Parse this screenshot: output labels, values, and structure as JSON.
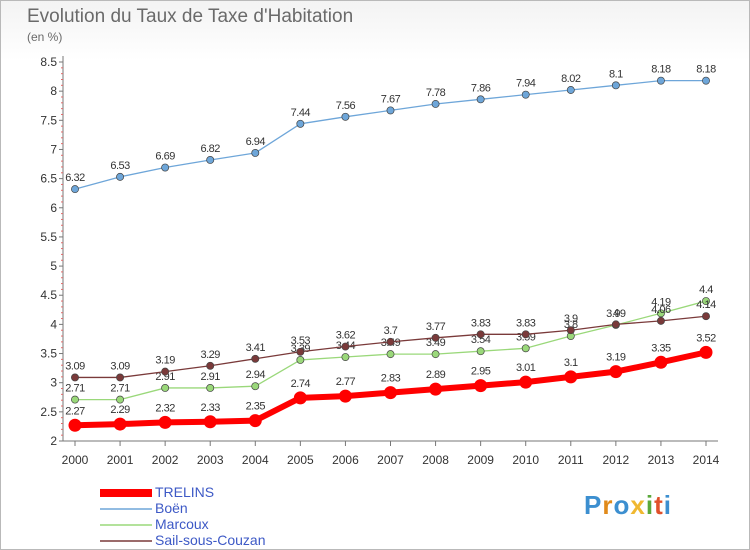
{
  "title": "Evolution du Taux de Taxe d'Habitation",
  "subtitle": "(en %)",
  "logo": "Proxiti",
  "chart_data": {
    "type": "line",
    "title": "Evolution du Taux de Taxe d'Habitation",
    "ylabel": "(en %)",
    "xlabel": "",
    "x": [
      "2000",
      "2001",
      "2002",
      "2003",
      "2004",
      "2005",
      "2006",
      "2007",
      "2008",
      "2009",
      "2010",
      "2011",
      "2012",
      "2013",
      "2014"
    ],
    "yticks": [
      "2",
      "2.5",
      "3",
      "3.5",
      "4",
      "4.5",
      "5",
      "5.5",
      "6",
      "6.5",
      "7",
      "7.5",
      "8",
      "8.5"
    ],
    "ylim": [
      2,
      8.5
    ],
    "grid": false,
    "legend_position": "bottom-left",
    "series": [
      {
        "name": "TRELINS",
        "color": "#ff0000",
        "values": [
          2.27,
          2.29,
          2.32,
          2.33,
          2.35,
          2.74,
          2.77,
          2.83,
          2.89,
          2.95,
          3.01,
          3.1,
          3.19,
          3.35,
          3.52
        ]
      },
      {
        "name": "Boën",
        "color": "#6ea6d9",
        "values": [
          6.32,
          6.53,
          6.69,
          6.82,
          6.94,
          7.44,
          7.56,
          7.67,
          7.78,
          7.86,
          7.94,
          8.02,
          8.1,
          8.18,
          8.18
        ]
      },
      {
        "name": "Marcoux",
        "color": "#9ad87a",
        "values": [
          2.71,
          2.71,
          2.91,
          2.91,
          2.94,
          3.39,
          3.44,
          3.49,
          3.49,
          3.54,
          3.59,
          3.8,
          3.99,
          4.19,
          4.4
        ]
      },
      {
        "name": "Sail-sous-Couzan",
        "color": "#7a3a3a",
        "values": [
          3.09,
          3.09,
          3.19,
          3.29,
          3.41,
          3.53,
          3.62,
          3.7,
          3.77,
          3.83,
          3.83,
          3.9,
          4.0,
          4.06,
          4.14
        ]
      }
    ]
  }
}
